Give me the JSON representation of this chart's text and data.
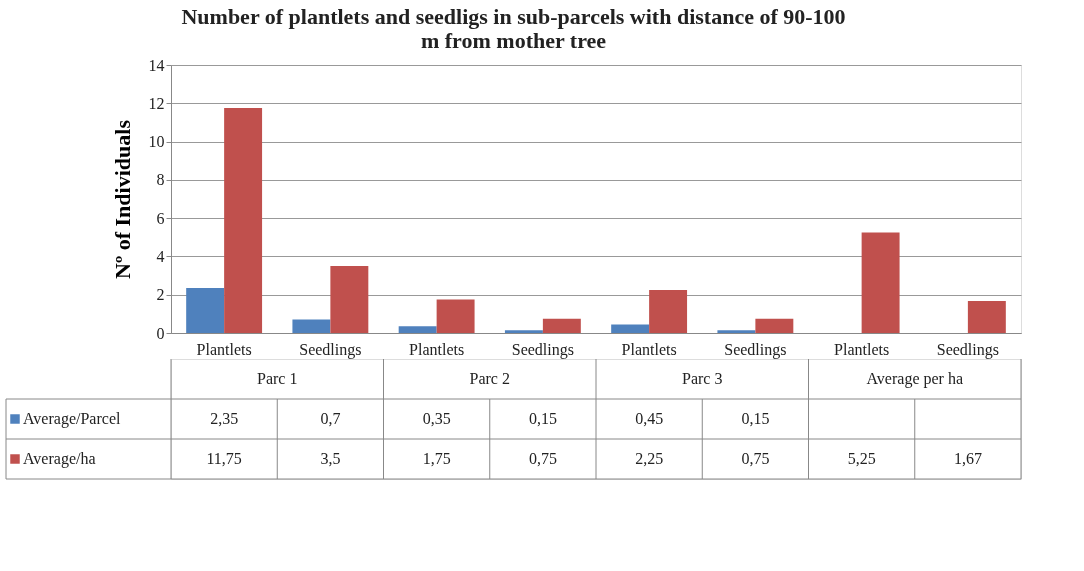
{
  "chart_data": {
    "type": "bar",
    "title": [
      "Number of plantlets and seedligs in sub-parcels with distance of 90-100",
      "m from mother tree"
    ],
    "ylabel": "Nº of Individuals",
    "categories": [
      "Plantlets",
      "Seedlings",
      "Plantlets",
      "Seedlings",
      "Plantlets",
      "Seedlings",
      "Plantlets",
      "Seedlings"
    ],
    "annotations": [
      "Parc 1",
      "Parc 2",
      "Parc 3",
      "Average per ha"
    ],
    "series": [
      {
        "name": "Average/Parcel",
        "color": "#4f81bd",
        "values": [
          2.35,
          0.7,
          0.35,
          0.15,
          0.45,
          0.15,
          null,
          null
        ],
        "value_labels": [
          "2,35",
          "0,7",
          "0,35",
          "0,15",
          "0,45",
          "0,15",
          null,
          null
        ]
      },
      {
        "name": "Average/ha",
        "color": "#c0504d",
        "values": [
          11.75,
          3.5,
          1.75,
          0.75,
          2.25,
          0.75,
          5.25,
          1.67
        ],
        "value_labels": [
          "11,75",
          "3,5",
          "1,75",
          "0,75",
          "2,25",
          "0,75",
          "5,25",
          "1,67"
        ]
      }
    ],
    "ylim": [
      0,
      14
    ],
    "yticks": [
      0,
      2,
      4,
      6,
      8,
      10,
      12,
      14
    ],
    "grid": "y",
    "legend": "bottom"
  }
}
